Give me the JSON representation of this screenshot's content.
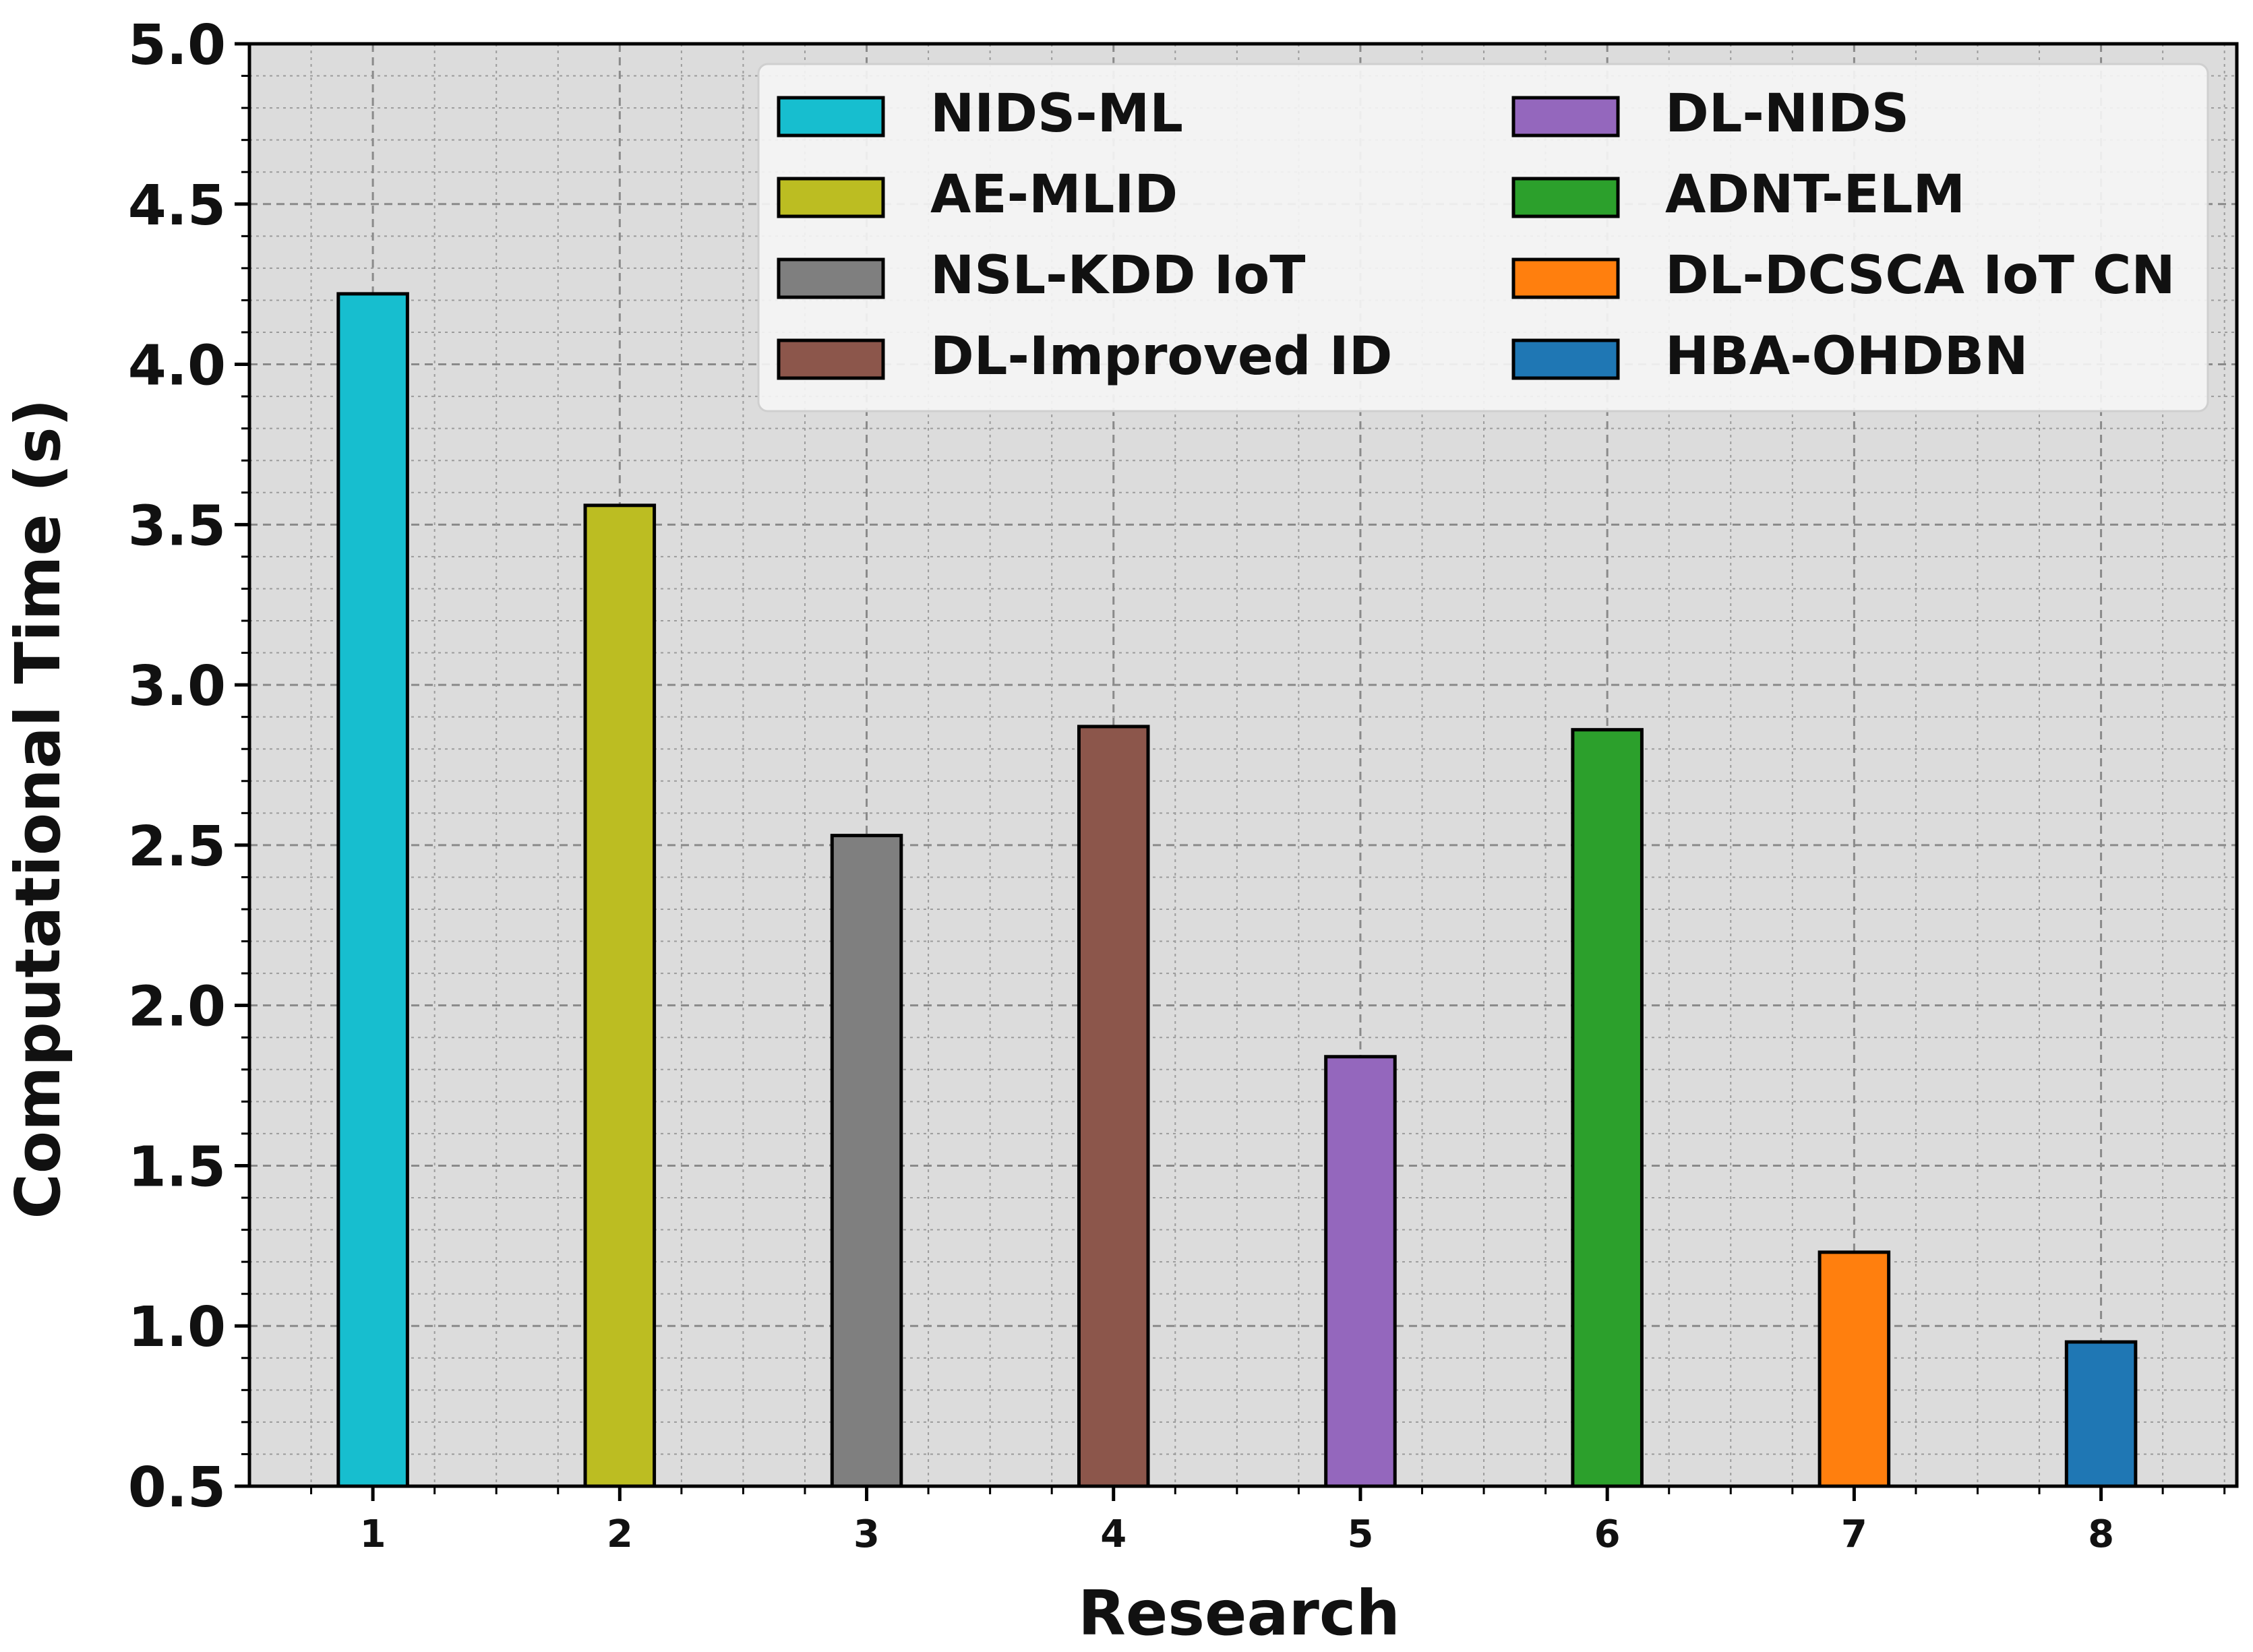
{
  "chart_data": {
    "type": "bar",
    "title": "",
    "xlabel": "Research",
    "ylabel": "Computational Time (s)",
    "categories": [
      "1",
      "2",
      "3",
      "4",
      "5",
      "6",
      "7",
      "8"
    ],
    "values": [
      4.22,
      3.56,
      2.53,
      2.87,
      1.84,
      2.86,
      1.23,
      0.95
    ],
    "ylim": [
      0.5,
      5.0
    ],
    "yticks": [
      "0.5",
      "1.0",
      "1.5",
      "2.0",
      "2.5",
      "3.0",
      "3.5",
      "4.0",
      "4.5",
      "5.0"
    ],
    "ytick_values": [
      0.5,
      1.0,
      1.5,
      2.0,
      2.5,
      3.0,
      3.5,
      4.0,
      4.5,
      5.0
    ],
    "grid": true,
    "legend_position": "top-right",
    "legend_columns": 2,
    "series": [
      {
        "name": "NIDS-ML",
        "color": "#17becf"
      },
      {
        "name": "AE-MLID",
        "color": "#bcbd22"
      },
      {
        "name": "NSL-KDD IoT",
        "color": "#7f7f7f"
      },
      {
        "name": "DL-Improved ID",
        "color": "#8c564b"
      },
      {
        "name": "DL-NIDS",
        "color": "#9467bd"
      },
      {
        "name": "ADNT-ELM",
        "color": "#2ca02c"
      },
      {
        "name": "DL-DCSCA IoT CN",
        "color": "#ff7f0e"
      },
      {
        "name": "HBA-OHDBN",
        "color": "#1f77b4"
      }
    ],
    "plot_background": "#dcdcdc"
  }
}
